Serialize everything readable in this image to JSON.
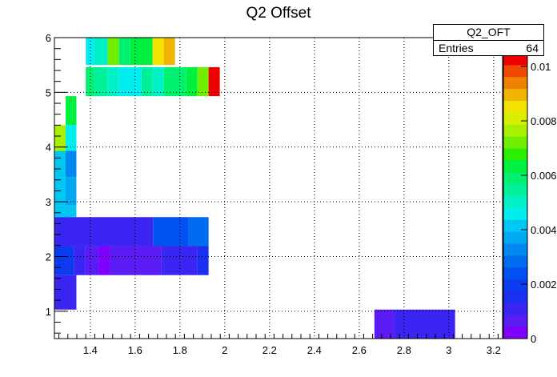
{
  "chart_data": {
    "type": "heatmap",
    "title": "Q2 Offset",
    "xlabel": "",
    "ylabel": "",
    "xlim": [
      1.24,
      3.24
    ],
    "ylim": [
      0.5,
      6.0
    ],
    "x_ticks": [
      "1.4",
      "1.6",
      "1.8",
      "2",
      "2.2",
      "2.4",
      "2.6",
      "2.8",
      "3",
      "3.2"
    ],
    "y_ticks": [
      "1",
      "2",
      "3",
      "4",
      "5",
      "6"
    ],
    "grid": true,
    "z_axis": {
      "min": 0,
      "max": 0.0105,
      "ticks": [
        "0",
        "0.002",
        "0.004",
        "0.006",
        "0.008",
        "0.01"
      ]
    },
    "palette": [
      "#7f00ff",
      "#5a1cf2",
      "#3a25f2",
      "#1b2ff0",
      "#0d3cf0",
      "#0052f0",
      "#006cf0",
      "#0088f0",
      "#00a8f2",
      "#00c6f4",
      "#00eef0",
      "#00f0c8",
      "#00f09a",
      "#00f070",
      "#00f040",
      "#2af000",
      "#70f000",
      "#a8f000",
      "#d8f000",
      "#f0e400",
      "#f0b400",
      "#f08000",
      "#f04800",
      "#f00000"
    ],
    "cells": [
      {
        "x": [
          1.38,
          1.418
        ],
        "y": [
          5.5,
          6.0
        ],
        "z": 0.0045
      },
      {
        "x": [
          1.418,
          1.478
        ],
        "y": [
          5.5,
          6.0
        ],
        "z": 0.005
      },
      {
        "x": [
          1.478,
          1.528
        ],
        "y": [
          5.5,
          6.0
        ],
        "z": 0.0072
      },
      {
        "x": [
          1.528,
          1.578
        ],
        "y": [
          5.5,
          6.0
        ],
        "z": 0.006
      },
      {
        "x": [
          1.578,
          1.678
        ],
        "y": [
          5.5,
          6.0
        ],
        "z": 0.0065
      },
      {
        "x": [
          1.678,
          1.728
        ],
        "y": [
          5.5,
          6.0
        ],
        "z": 0.0085
      },
      {
        "x": [
          1.728,
          1.778
        ],
        "y": [
          5.5,
          6.0
        ],
        "z": 0.009
      },
      {
        "x": [
          1.38,
          1.418
        ],
        "y": [
          4.93,
          5.46
        ],
        "z": 0.006
      },
      {
        "x": [
          1.418,
          1.478
        ],
        "y": [
          4.93,
          5.46
        ],
        "z": 0.0055
      },
      {
        "x": [
          1.478,
          1.528
        ],
        "y": [
          4.93,
          5.46
        ],
        "z": 0.005
      },
      {
        "x": [
          1.528,
          1.628
        ],
        "y": [
          4.93,
          5.46
        ],
        "z": 0.0045
      },
      {
        "x": [
          1.628,
          1.678
        ],
        "y": [
          4.93,
          5.46
        ],
        "z": 0.0055
      },
      {
        "x": [
          1.678,
          1.728
        ],
        "y": [
          4.93,
          5.46
        ],
        "z": 0.005
      },
      {
        "x": [
          1.728,
          1.828
        ],
        "y": [
          4.93,
          5.46
        ],
        "z": 0.006
      },
      {
        "x": [
          1.828,
          1.878
        ],
        "y": [
          4.93,
          5.46
        ],
        "z": 0.0063
      },
      {
        "x": [
          1.878,
          1.928
        ],
        "y": [
          4.93,
          5.46
        ],
        "z": 0.0072
      },
      {
        "x": [
          1.928,
          1.978
        ],
        "y": [
          4.93,
          5.46
        ],
        "z": 0.0105
      },
      {
        "x": [
          1.29,
          1.338
        ],
        "y": [
          4.4,
          4.93
        ],
        "z": 0.0064
      },
      {
        "x": [
          1.24,
          1.29
        ],
        "y": [
          3.93,
          4.4
        ],
        "z": 0.0076
      },
      {
        "x": [
          1.29,
          1.338
        ],
        "y": [
          3.93,
          4.4
        ],
        "z": 0.0048
      },
      {
        "x": [
          1.24,
          1.29
        ],
        "y": [
          3.45,
          3.93
        ],
        "z": 0.004
      },
      {
        "x": [
          1.29,
          1.338
        ],
        "y": [
          3.45,
          3.93
        ],
        "z": 0.0032
      },
      {
        "x": [
          1.24,
          1.29
        ],
        "y": [
          2.93,
          3.45
        ],
        "z": 0.004
      },
      {
        "x": [
          1.29,
          1.338
        ],
        "y": [
          2.93,
          3.45
        ],
        "z": 0.0036
      },
      {
        "x": [
          1.24,
          1.29
        ],
        "y": [
          2.72,
          2.93
        ],
        "z": 0.0042
      },
      {
        "x": [
          1.29,
          1.338
        ],
        "y": [
          2.72,
          2.93
        ],
        "z": 0.0042
      },
      {
        "x": [
          1.24,
          1.68
        ],
        "y": [
          2.19,
          2.72
        ],
        "z": 0.0012
      },
      {
        "x": [
          1.68,
          1.838
        ],
        "y": [
          2.19,
          2.72
        ],
        "z": 0.0022
      },
      {
        "x": [
          1.838,
          1.928
        ],
        "y": [
          2.19,
          2.72
        ],
        "z": 0.003
      },
      {
        "x": [
          1.24,
          1.328
        ],
        "y": [
          1.66,
          2.19
        ],
        "z": 0.002
      },
      {
        "x": [
          1.328,
          1.378
        ],
        "y": [
          1.66,
          2.19
        ],
        "z": 0.0012
      },
      {
        "x": [
          1.378,
          1.438
        ],
        "y": [
          1.66,
          2.19
        ],
        "z": 0.0006
      },
      {
        "x": [
          1.438,
          1.488
        ],
        "y": [
          1.66,
          2.19
        ],
        "z": 0.0004
      },
      {
        "x": [
          1.488,
          1.718
        ],
        "y": [
          1.66,
          2.19
        ],
        "z": 0.0007
      },
      {
        "x": [
          1.718,
          1.878
        ],
        "y": [
          1.66,
          2.19
        ],
        "z": 0.0012
      },
      {
        "x": [
          1.878,
          1.928
        ],
        "y": [
          1.66,
          2.19
        ],
        "z": 0.0014
      },
      {
        "x": [
          1.24,
          1.338
        ],
        "y": [
          1.03,
          1.66
        ],
        "z": 0.0012
      },
      {
        "x": [
          2.668,
          2.758
        ],
        "y": [
          0.5,
          1.03
        ],
        "z": 0.0006
      },
      {
        "x": [
          2.758,
          3.028
        ],
        "y": [
          0.5,
          1.03
        ],
        "z": 0.0012
      }
    ]
  },
  "stats_box": {
    "name": "Q2_OFT",
    "entries_label": "Entries",
    "entries_value": "64"
  }
}
